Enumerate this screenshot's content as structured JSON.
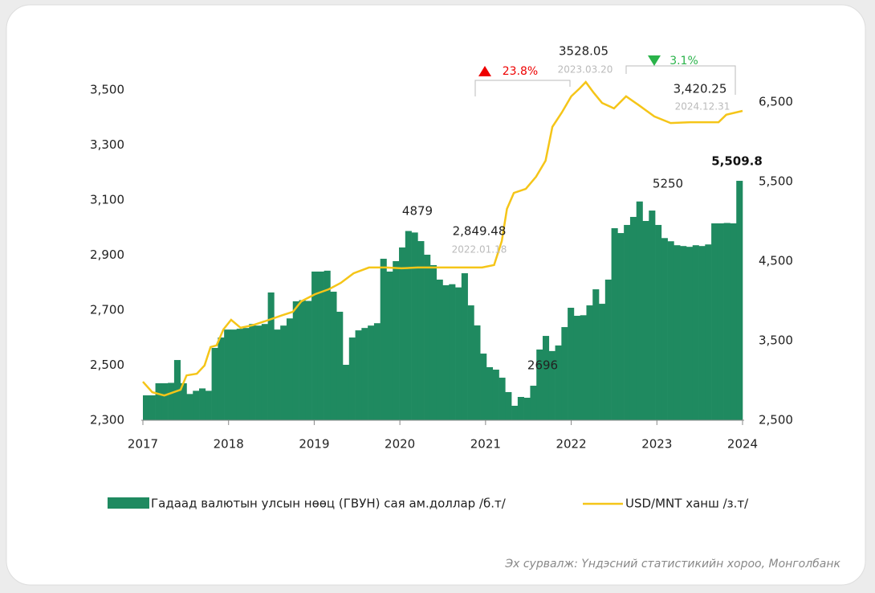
{
  "chart_data": {
    "type": "bar",
    "xlim": [
      2017,
      2024
    ],
    "xticks": [
      2017,
      2018,
      2019,
      2020,
      2021,
      2022,
      2023,
      2024
    ],
    "ylim": [
      2300,
      3500
    ],
    "yticks": [
      {
        "value": 2300,
        "label": "2,300"
      },
      {
        "value": 2500,
        "label": "2,500"
      },
      {
        "value": 2700,
        "label": "2,700"
      },
      {
        "value": 2900,
        "label": "2,900"
      },
      {
        "value": 3100,
        "label": "3,100"
      },
      {
        "value": 3300,
        "label": "3,300"
      },
      {
        "value": 3500,
        "label": "3,500"
      }
    ],
    "y2lim": [
      2500,
      6500
    ],
    "y2ticks": [
      {
        "value": 2500,
        "label": "2,500"
      },
      {
        "value": 3500,
        "label": "3,500"
      },
      {
        "value": 4500,
        "label": "4,500"
      },
      {
        "value": 5500,
        "label": "5,500"
      },
      {
        "value": 6500,
        "label": "6,500"
      }
    ],
    "series": [
      {
        "name": "Гадаад валютын улсын нөөц (ГВУН) сая ам.доллар /б.т/",
        "type": "bar",
        "axis": "y2",
        "color": "#1f8a60",
        "values": [
          2813,
          2813,
          2965,
          2965,
          2970,
          3257,
          2965,
          2830,
          2870,
          2900,
          2870,
          3409,
          3540,
          3640,
          3640,
          3650,
          3660,
          3710,
          3690,
          3710,
          4106,
          3640,
          3690,
          3780,
          3995,
          4010,
          4000,
          4369,
          4369,
          4380,
          4116,
          3864,
          3197,
          3540,
          3630,
          3660,
          3690,
          3720,
          4530,
          4369,
          4500,
          4672,
          4879,
          4860,
          4752,
          4581,
          4450,
          4268,
          4197,
          4210,
          4170,
          4348,
          3944,
          3692,
          3338,
          3167,
          3136,
          3035,
          2854,
          2682,
          2793,
          2783,
          2934,
          3389,
          3560,
          3370,
          3440,
          3671,
          3914,
          3813,
          3820,
          3944,
          4146,
          3964,
          4268,
          4914,
          4853,
          4955,
          5056,
          5250,
          5005,
          5136,
          4955,
          4790,
          4750,
          4700,
          4690,
          4680,
          4700,
          4690,
          4710,
          4975,
          4975,
          4980,
          4975,
          5509.8
        ]
      },
      {
        "name": "USD/MNT ханш /з.т/",
        "type": "line",
        "axis": "y",
        "color": "#f5c518",
        "x": [
          2017.0,
          2017.11,
          2017.25,
          2017.44,
          2017.51,
          2017.63,
          2017.72,
          2017.79,
          2017.86,
          2017.94,
          2018.03,
          2018.14,
          2018.28,
          2018.42,
          2018.61,
          2018.75,
          2018.85,
          2019.01,
          2019.17,
          2019.31,
          2019.46,
          2019.64,
          2019.83,
          2020.02,
          2020.21,
          2020.58,
          2020.96,
          2021.1,
          2021.19,
          2021.25,
          2021.33,
          2021.47,
          2021.59,
          2021.7,
          2021.78,
          2021.89,
          2022.0,
          2022.1,
          2022.17,
          2022.26,
          2022.36,
          2022.5,
          2022.64,
          2022.78,
          2022.97,
          2023.16,
          2023.39,
          2023.72,
          2023.81,
          2024.0
        ],
        "values": [
          2440,
          2402,
          2390,
          2411,
          2463,
          2469,
          2499,
          2566,
          2572,
          2630,
          2665,
          2636,
          2645,
          2659,
          2680,
          2694,
          2732,
          2758,
          2776,
          2799,
          2834,
          2855,
          2855,
          2852,
          2855,
          2855,
          2855,
          2864,
          2951,
          3068,
          3126,
          3141,
          3185,
          3243,
          3366,
          3418,
          3477,
          3506,
          3529,
          3491,
          3453,
          3433,
          3477,
          3447,
          3404,
          3380,
          3383,
          3383,
          3410,
          3424
        ]
      }
    ],
    "annotations": [
      "4879",
      "2,849.48",
      "2022.01.18",
      "2696",
      "3528.05",
      "2023.03.20",
      "5250",
      "3,420.25",
      "2024.12.31",
      "5,509.8",
      "23.8%",
      "3.1%"
    ],
    "source": "Эх сурвалж: Үндэсний статистикийн хороо, Монголбанк"
  }
}
